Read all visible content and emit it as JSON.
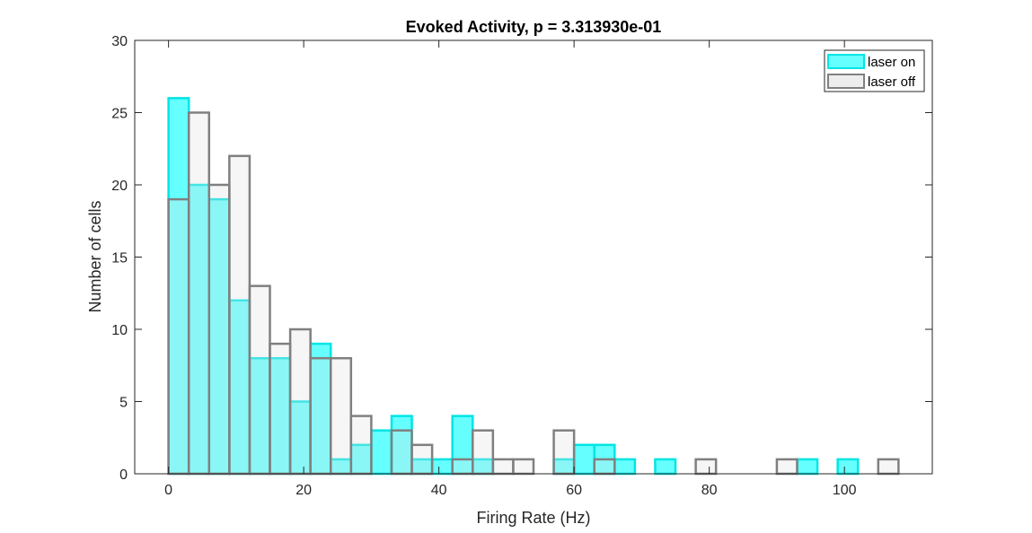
{
  "chart_data": {
    "type": "bar",
    "title": "Evoked Activity, p = 3.313930e-01",
    "xlabel": "Firing Rate (Hz)",
    "ylabel": "Number of cells",
    "xlim": [
      -5,
      113
    ],
    "ylim": [
      0,
      30
    ],
    "xticks": [
      0,
      20,
      40,
      60,
      80,
      100
    ],
    "yticks": [
      0,
      5,
      10,
      15,
      20,
      25,
      30
    ],
    "bin_width": 3,
    "bin_starts": [
      0,
      3,
      6,
      9,
      12,
      15,
      18,
      21,
      24,
      27,
      30,
      33,
      36,
      39,
      42,
      45,
      48,
      51,
      54,
      57,
      60,
      63,
      66,
      69,
      72,
      75,
      78,
      81,
      84,
      87,
      90,
      93,
      96,
      99,
      102,
      105
    ],
    "legend_position": "top-right",
    "series": [
      {
        "name": "laser on",
        "color": "#00FFFF",
        "values": [
          26,
          20,
          19,
          12,
          8,
          8,
          5,
          9,
          1,
          2,
          3,
          4,
          1,
          1,
          4,
          1,
          0,
          0,
          0,
          1,
          2,
          2,
          1,
          0,
          1,
          0,
          0,
          0,
          0,
          0,
          0,
          1,
          0,
          1,
          0,
          0
        ]
      },
      {
        "name": "laser off",
        "color": "#808080",
        "values": [
          19,
          25,
          20,
          22,
          13,
          9,
          10,
          8,
          8,
          4,
          0,
          3,
          2,
          0,
          1,
          3,
          1,
          1,
          0,
          3,
          0,
          1,
          0,
          0,
          0,
          0,
          1,
          0,
          0,
          0,
          1,
          0,
          0,
          0,
          0,
          1
        ]
      }
    ]
  }
}
